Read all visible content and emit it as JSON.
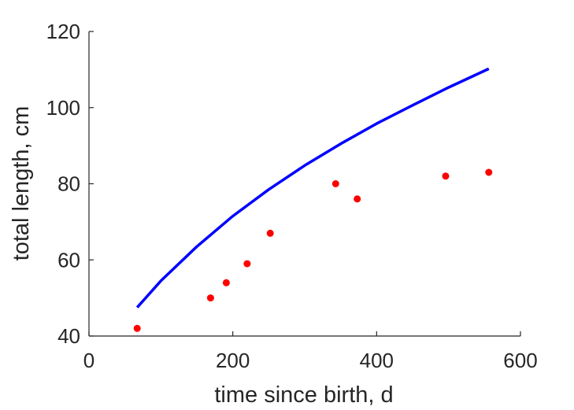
{
  "chart_data": {
    "type": "scatter",
    "title": "",
    "xlabel": "time since birth, d",
    "ylabel": "total length, cm",
    "xlim": [
      0,
      600
    ],
    "ylim": [
      40,
      120
    ],
    "xticks": [
      0,
      200,
      400,
      600
    ],
    "yticks": [
      40,
      60,
      80,
      100,
      120
    ],
    "grid": false,
    "colors": {
      "axis": "#262626",
      "points": "#ff0000",
      "curve": "#0000ff"
    },
    "series": [
      {
        "type": "scatter",
        "x": [
          67,
          169,
          191,
          220,
          252,
          343,
          373,
          496,
          556
        ],
        "y": [
          42,
          50,
          54,
          59,
          67,
          80,
          76,
          82,
          83
        ]
      },
      {
        "type": "line",
        "x": [
          67,
          100,
          150,
          200,
          250,
          300,
          350,
          400,
          450,
          500,
          556
        ],
        "y": [
          47.5,
          54.5,
          63.5,
          71.5,
          78.5,
          84.8,
          90.5,
          95.8,
          100.6,
          105.3,
          110.2
        ]
      }
    ]
  }
}
